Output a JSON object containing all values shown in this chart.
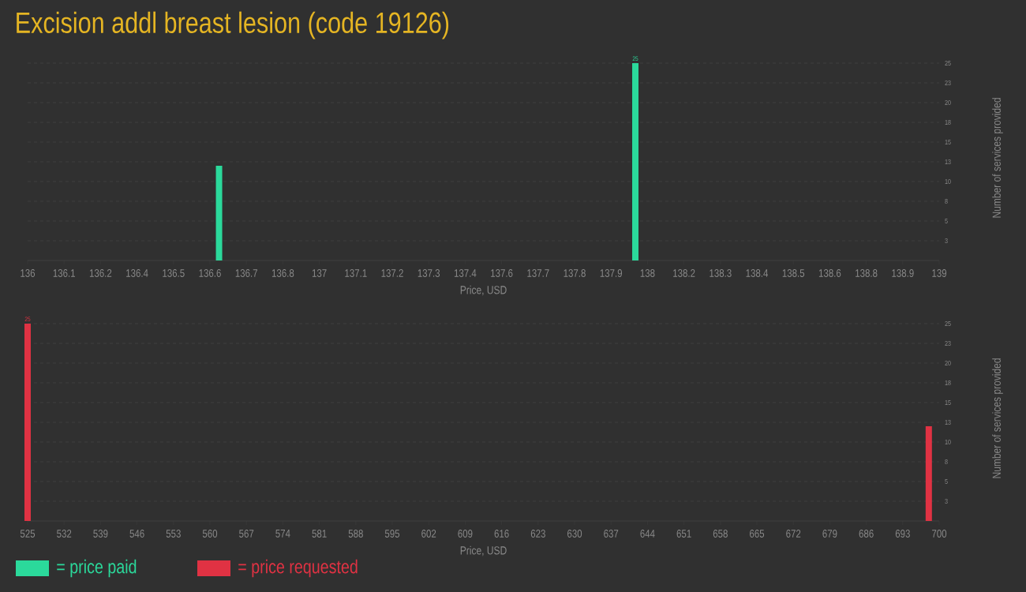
{
  "chart_data": [
    {
      "type": "bar",
      "title": "Excision addl breast lesion (code 19126)",
      "xlabel": "Price, USD",
      "ylabel": "Number of services provided",
      "grid": "y",
      "legend": "bottom left",
      "x": [
        136.63,
        138.0
      ],
      "series": [
        {
          "name": "= price paid",
          "color": "#2bd99b",
          "values": [
            12,
            25
          ],
          "value_labels": [
            null,
            "25"
          ]
        }
      ],
      "xlim": [
        136,
        139
      ],
      "ylim": [
        0,
        25
      ],
      "xticks": [
        136,
        {
          "value": 136.12,
          "label": "136.1"
        },
        {
          "value": 136.24,
          "label": "136.2"
        },
        {
          "value": 136.36,
          "label": "136.4"
        },
        {
          "value": 136.48,
          "label": "136.5"
        },
        {
          "value": 136.6,
          "label": "136.6"
        },
        {
          "value": 136.72,
          "label": "136.7"
        },
        {
          "value": 136.84,
          "label": "136.8"
        },
        {
          "value": 136.96,
          "label": "137"
        },
        {
          "value": 137.08,
          "label": "137.1"
        },
        {
          "value": 137.2,
          "label": "137.2"
        },
        {
          "value": 137.32,
          "label": "137.3"
        },
        {
          "value": 137.44,
          "label": "137.4"
        },
        {
          "value": 137.56,
          "label": "137.6"
        },
        {
          "value": 137.68,
          "label": "137.7"
        },
        {
          "value": 137.8,
          "label": "137.8"
        },
        {
          "value": 137.92,
          "label": "137.9"
        },
        {
          "value": 138.04,
          "label": "138"
        },
        {
          "value": 138.16,
          "label": "138.2"
        },
        {
          "value": 138.28,
          "label": "138.3"
        },
        {
          "value": 138.4,
          "label": "138.4"
        },
        {
          "value": 138.52,
          "label": "138.5"
        },
        {
          "value": 138.64,
          "label": "138.6"
        },
        {
          "value": 138.76,
          "label": "138.8"
        },
        {
          "value": 138.88,
          "label": "138.9"
        },
        139
      ],
      "yticks": [
        {
          "value": 2.5,
          "label": "3"
        },
        5,
        {
          "value": 7.5,
          "label": "8"
        },
        10,
        {
          "value": 12.5,
          "label": "13"
        },
        15,
        {
          "value": 17.5,
          "label": "18"
        },
        20,
        {
          "value": 22.5,
          "label": "23"
        },
        25
      ]
    },
    {
      "type": "bar",
      "xlabel": "Price, USD",
      "ylabel": "Number of services provided",
      "grid": "y",
      "legend": "bottom left",
      "x": [
        525,
        698
      ],
      "series": [
        {
          "name": "= price requested",
          "color": "#e03243",
          "values": [
            25,
            12
          ],
          "value_labels": [
            "25",
            null
          ]
        }
      ],
      "xlim": [
        525,
        700
      ],
      "ylim": [
        0,
        25
      ],
      "xticks": [
        525,
        532,
        539,
        546,
        553,
        560,
        567,
        574,
        581,
        588,
        595,
        602,
        609,
        616,
        623,
        630,
        637,
        644,
        651,
        658,
        665,
        672,
        679,
        686,
        693,
        700
      ],
      "yticks": [
        {
          "value": 2.5,
          "label": "3"
        },
        5,
        {
          "value": 7.5,
          "label": "8"
        },
        10,
        {
          "value": 12.5,
          "label": "13"
        },
        15,
        {
          "value": 17.5,
          "label": "18"
        },
        20,
        {
          "value": 22.5,
          "label": "23"
        },
        25
      ]
    }
  ]
}
